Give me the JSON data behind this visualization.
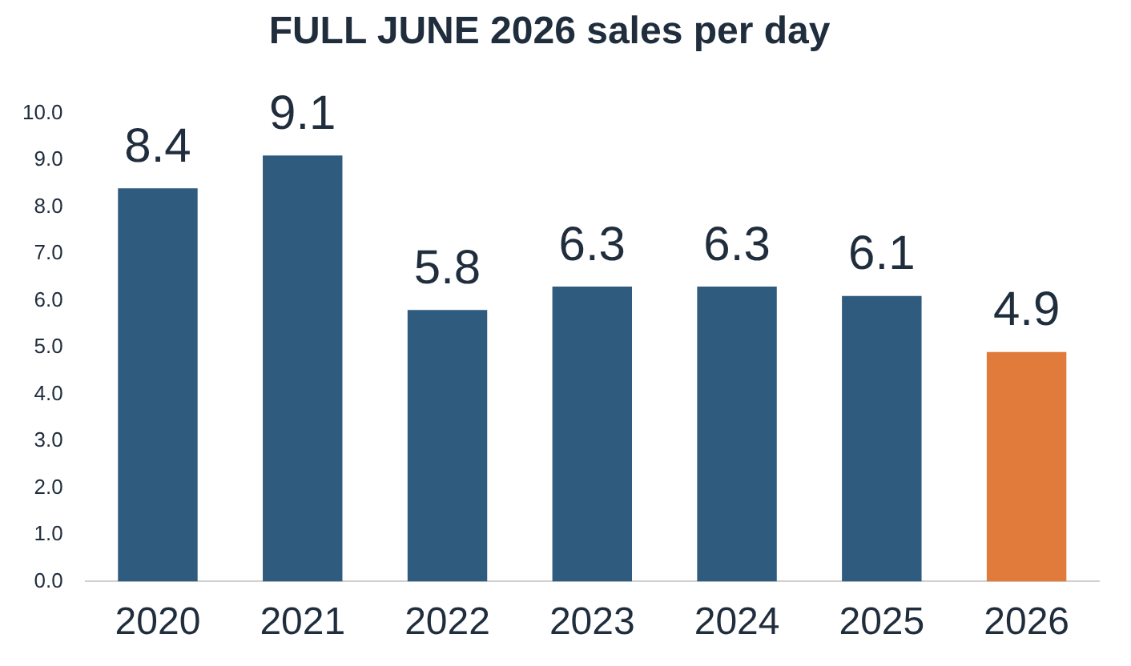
{
  "chart_data": {
    "type": "bar",
    "title": "FULL JUNE 2026 sales per day",
    "categories": [
      "2020",
      "2021",
      "2022",
      "2023",
      "2024",
      "2025",
      "2026"
    ],
    "values": [
      8.4,
      9.1,
      5.8,
      6.3,
      6.3,
      6.1,
      4.9
    ],
    "colors": [
      "#2f5b7f",
      "#2f5b7f",
      "#2f5b7f",
      "#2f5b7f",
      "#2f5b7f",
      "#2f5b7f",
      "#e07b3c"
    ],
    "ylim": [
      0,
      10
    ],
    "yticks": [
      {
        "value": 0,
        "label": "0.0"
      },
      {
        "value": 1,
        "label": "1.0"
      },
      {
        "value": 2,
        "label": "2.0"
      },
      {
        "value": 3,
        "label": "3.0"
      },
      {
        "value": 4,
        "label": "4.0"
      },
      {
        "value": 5,
        "label": "5.0"
      },
      {
        "value": 6,
        "label": "6.0"
      },
      {
        "value": 7,
        "label": "7.0"
      },
      {
        "value": 8,
        "label": "8.0"
      },
      {
        "value": 9,
        "label": "9.0"
      },
      {
        "value": 10,
        "label": "10.0"
      }
    ],
    "data_labels": true,
    "grid": false,
    "legend": false
  }
}
